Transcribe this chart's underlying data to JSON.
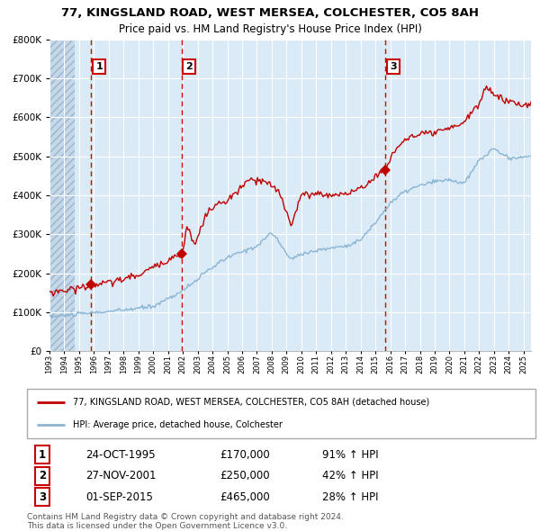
{
  "title": "77, KINGSLAND ROAD, WEST MERSEA, COLCHESTER, CO5 8AH",
  "subtitle": "Price paid vs. HM Land Registry's House Price Index (HPI)",
  "ylim": [
    0,
    800000
  ],
  "yticks": [
    0,
    100000,
    200000,
    300000,
    400000,
    500000,
    600000,
    700000,
    800000
  ],
  "sale1_date": 1995.82,
  "sale1_price": 170000,
  "sale1_label": "1",
  "sale2_date": 2001.91,
  "sale2_price": 250000,
  "sale2_label": "2",
  "sale3_date": 2015.67,
  "sale3_price": 465000,
  "sale3_label": "3",
  "hpi_line_color": "#8ab4d4",
  "price_line_color": "#c00000",
  "sale_marker_color": "#c00000",
  "dashed_line_color": "#cc0000",
  "plot_bg_color": "#daeaf6",
  "grid_color": "#ffffff",
  "legend_line1": "77, KINGSLAND ROAD, WEST MERSEA, COLCHESTER, CO5 8AH (detached house)",
  "legend_line2": "HPI: Average price, detached house, Colchester",
  "table_row1": [
    "1",
    "24-OCT-1995",
    "£170,000",
    "91% ↑ HPI"
  ],
  "table_row2": [
    "2",
    "27-NOV-2001",
    "£250,000",
    "42% ↑ HPI"
  ],
  "table_row3": [
    "3",
    "01-SEP-2015",
    "£465,000",
    "28% ↑ HPI"
  ],
  "footer": "Contains HM Land Registry data © Crown copyright and database right 2024.\nThis data is licensed under the Open Government Licence v3.0.",
  "xlim_start": 1993.0,
  "xlim_end": 2025.5
}
